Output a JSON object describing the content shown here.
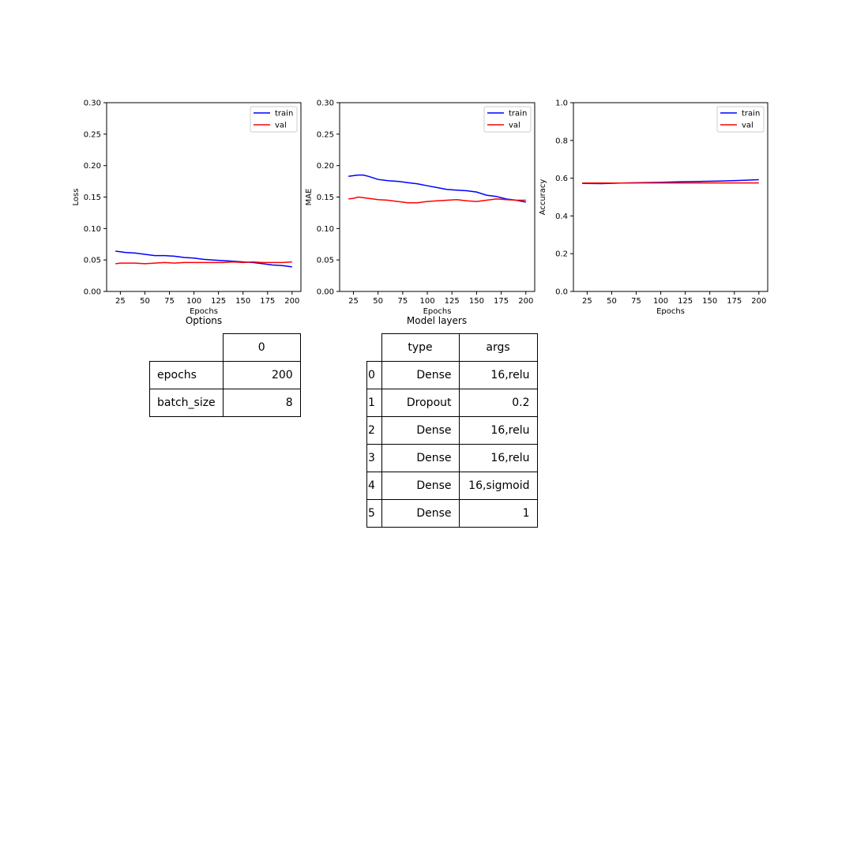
{
  "chart_data": [
    {
      "type": "line",
      "ylabel": "Loss",
      "xlabel": "Epochs",
      "xlim": [
        11,
        209
      ],
      "ylim": [
        0.0,
        0.3
      ],
      "xticks": [
        25,
        50,
        75,
        100,
        125,
        150,
        175,
        200
      ],
      "yticks": [
        0.0,
        0.05,
        0.1,
        0.15,
        0.2,
        0.25,
        0.3
      ],
      "ytick_labels": [
        "0.00",
        "0.05",
        "0.10",
        "0.15",
        "0.20",
        "0.25",
        "0.30"
      ],
      "legend": "top-right",
      "x": [
        20,
        25,
        30,
        40,
        50,
        60,
        70,
        80,
        90,
        100,
        110,
        120,
        130,
        140,
        150,
        160,
        170,
        180,
        190,
        200
      ],
      "series": [
        {
          "name": "train",
          "color": "#0000ff",
          "values": [
            0.064,
            0.063,
            0.062,
            0.061,
            0.059,
            0.057,
            0.057,
            0.056,
            0.054,
            0.053,
            0.051,
            0.05,
            0.049,
            0.048,
            0.047,
            0.046,
            0.044,
            0.042,
            0.041,
            0.039
          ]
        },
        {
          "name": "val",
          "color": "#ff0000",
          "values": [
            0.044,
            0.045,
            0.045,
            0.045,
            0.044,
            0.045,
            0.046,
            0.045,
            0.046,
            0.046,
            0.046,
            0.046,
            0.046,
            0.047,
            0.046,
            0.047,
            0.046,
            0.046,
            0.046,
            0.047
          ]
        }
      ]
    },
    {
      "type": "line",
      "ylabel": "MAE",
      "xlabel": "Epochs",
      "xlim": [
        11,
        209
      ],
      "ylim": [
        0.0,
        0.3
      ],
      "xticks": [
        25,
        50,
        75,
        100,
        125,
        150,
        175,
        200
      ],
      "yticks": [
        0.0,
        0.05,
        0.1,
        0.15,
        0.2,
        0.25,
        0.3
      ],
      "ytick_labels": [
        "0.00",
        "0.05",
        "0.10",
        "0.15",
        "0.20",
        "0.25",
        "0.30"
      ],
      "legend": "top-right",
      "x": [
        20,
        25,
        30,
        35,
        40,
        50,
        60,
        70,
        80,
        90,
        100,
        110,
        120,
        130,
        140,
        150,
        160,
        170,
        180,
        190,
        200
      ],
      "series": [
        {
          "name": "train",
          "color": "#0000ff",
          "values": [
            0.183,
            0.184,
            0.185,
            0.185,
            0.183,
            0.178,
            0.176,
            0.175,
            0.173,
            0.171,
            0.168,
            0.165,
            0.162,
            0.161,
            0.16,
            0.158,
            0.153,
            0.151,
            0.147,
            0.145,
            0.142
          ]
        },
        {
          "name": "val",
          "color": "#ff0000",
          "values": [
            0.147,
            0.148,
            0.15,
            0.149,
            0.148,
            0.146,
            0.145,
            0.143,
            0.141,
            0.141,
            0.143,
            0.144,
            0.145,
            0.146,
            0.144,
            0.143,
            0.145,
            0.147,
            0.146,
            0.145,
            0.145
          ]
        }
      ]
    },
    {
      "type": "line",
      "ylabel": "Accuracy",
      "xlabel": "Epochs",
      "xlim": [
        11,
        209
      ],
      "ylim": [
        0.0,
        1.0
      ],
      "xticks": [
        25,
        50,
        75,
        100,
        125,
        150,
        175,
        200
      ],
      "yticks": [
        0.0,
        0.2,
        0.4,
        0.6,
        0.8,
        1.0
      ],
      "ytick_labels": [
        "0.0",
        "0.2",
        "0.4",
        "0.6",
        "0.8",
        "1.0"
      ],
      "legend": "top-right",
      "x": [
        20,
        40,
        60,
        80,
        100,
        120,
        140,
        160,
        180,
        200
      ],
      "series": [
        {
          "name": "train",
          "color": "#0000ff",
          "values": [
            0.572,
            0.571,
            0.574,
            0.576,
            0.578,
            0.581,
            0.583,
            0.585,
            0.588,
            0.592
          ]
        },
        {
          "name": "val",
          "color": "#ff0000",
          "values": [
            0.574,
            0.574,
            0.574,
            0.575,
            0.575,
            0.575,
            0.575,
            0.575,
            0.575,
            0.575
          ]
        }
      ]
    }
  ],
  "options_table": {
    "title": "Options",
    "header": "0",
    "rows": [
      {
        "label": "epochs",
        "value": "200"
      },
      {
        "label": "batch_size",
        "value": "8"
      }
    ]
  },
  "layers_table": {
    "title": "Model layers",
    "headers": [
      "type",
      "args"
    ],
    "rows": [
      {
        "index": "0",
        "type": "Dense",
        "args": "16,relu"
      },
      {
        "index": "1",
        "type": "Dropout",
        "args": "0.2"
      },
      {
        "index": "2",
        "type": "Dense",
        "args": "16,relu"
      },
      {
        "index": "3",
        "type": "Dense",
        "args": "16,relu"
      },
      {
        "index": "4",
        "type": "Dense",
        "args": "16,sigmoid"
      },
      {
        "index": "5",
        "type": "Dense",
        "args": "1"
      }
    ]
  }
}
